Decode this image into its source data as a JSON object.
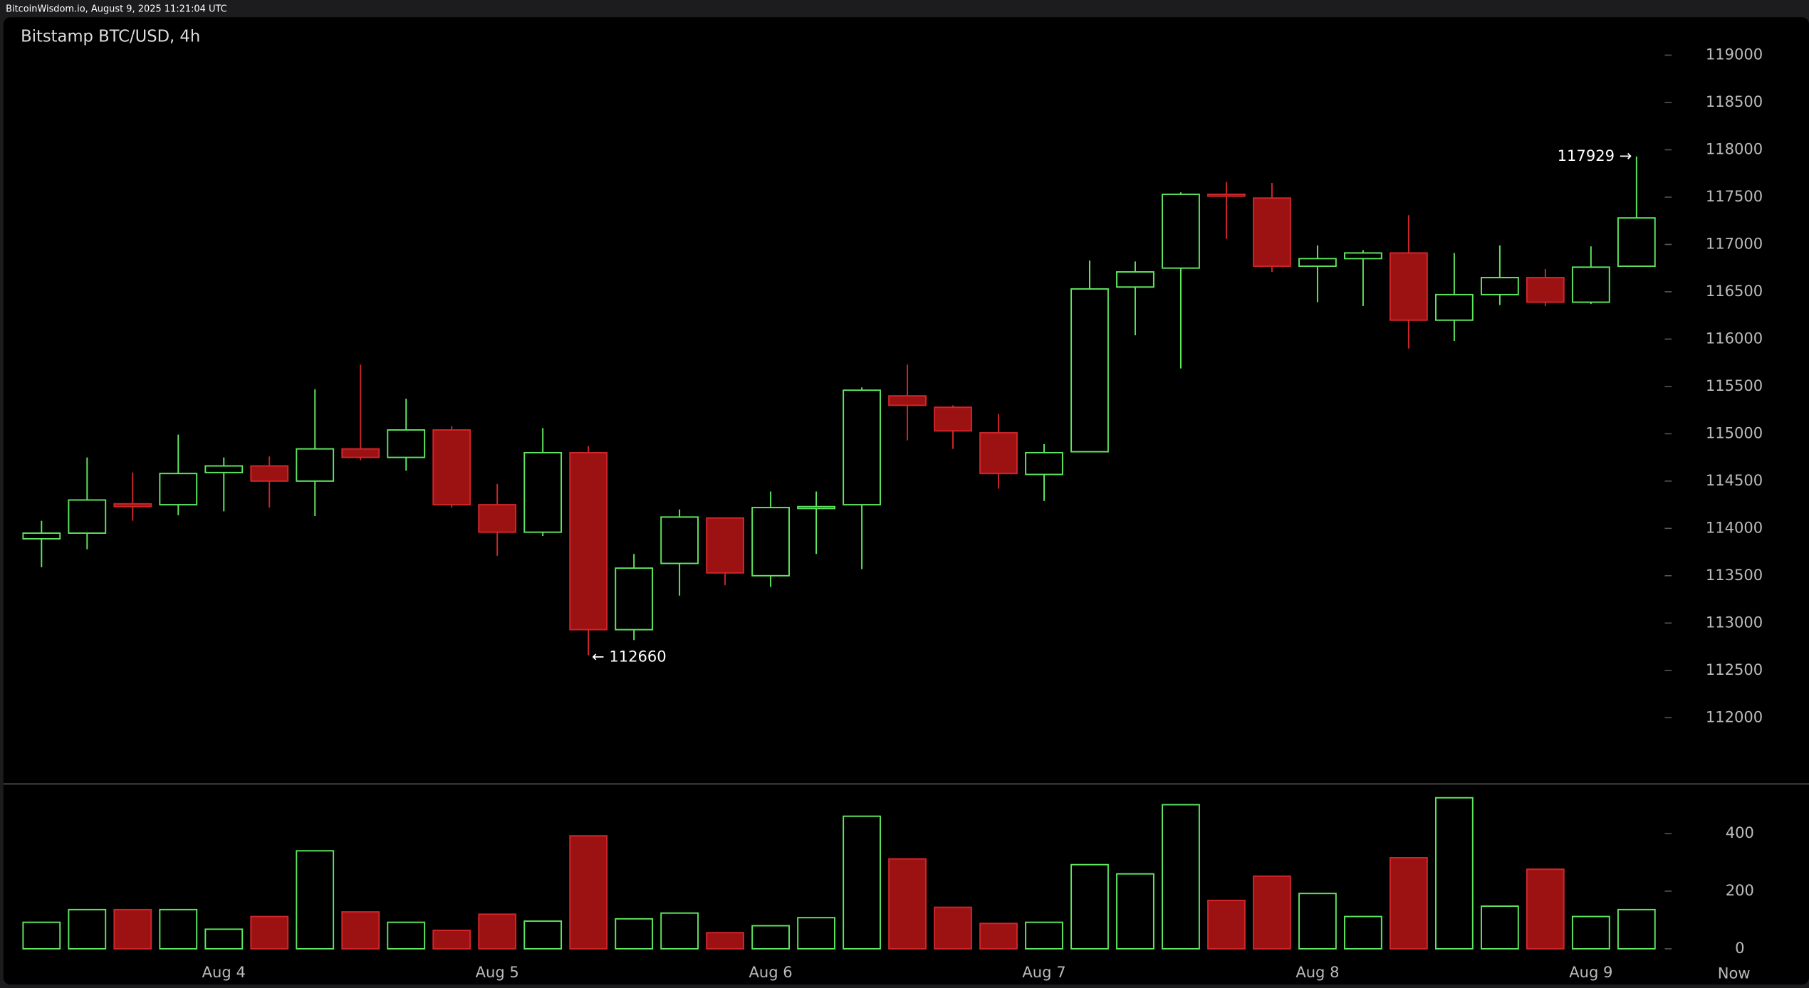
{
  "chart_data": {
    "type": "candlestick",
    "source": "BitcoinWisdom.io, August 9, 2025 11:21:04 UTC",
    "title": "Bitstamp BTC/USD, 4h",
    "categories": [
      null,
      null,
      null,
      null,
      "Aug 4",
      null,
      null,
      null,
      null,
      null,
      "Aug 5",
      null,
      null,
      null,
      null,
      null,
      "Aug 6",
      null,
      null,
      null,
      null,
      null,
      "Aug 7",
      null,
      null,
      null,
      null,
      null,
      "Aug 8",
      null,
      null,
      null,
      null,
      null,
      "Aug 9",
      null
    ],
    "now_label": "Now",
    "open": [
      113890,
      113950,
      114260,
      114250,
      114590,
      114660,
      114500,
      114840,
      114750,
      115040,
      114250,
      113960,
      114800,
      112930,
      113630,
      114110,
      113500,
      114210,
      114250,
      115400,
      115280,
      115010,
      114570,
      114810,
      116550,
      116750,
      117530,
      117490,
      116770,
      116850,
      116910,
      116200,
      116470,
      116650,
      116390,
      116770
    ],
    "close": [
      113950,
      114300,
      114230,
      114580,
      114660,
      114500,
      114840,
      114750,
      115040,
      114250,
      113960,
      114800,
      112930,
      113580,
      114120,
      113530,
      114220,
      114230,
      115460,
      115300,
      115030,
      114580,
      114800,
      116530,
      116710,
      117530,
      117510,
      116770,
      116850,
      116910,
      116200,
      116470,
      116650,
      116390,
      116760,
      117280
    ],
    "high": [
      114080,
      114750,
      114590,
      114990,
      114750,
      114760,
      115470,
      115730,
      115370,
      115080,
      114470,
      115060,
      114870,
      113730,
      114200,
      114110,
      114390,
      114390,
      115490,
      115730,
      115300,
      115210,
      114890,
      116830,
      116820,
      117550,
      117660,
      117650,
      116990,
      116940,
      117310,
      116910,
      116990,
      116740,
      116980,
      117929
    ],
    "low": [
      113590,
      113780,
      114080,
      114140,
      114180,
      114220,
      114130,
      114720,
      114610,
      114220,
      113710,
      113920,
      112660,
      112820,
      113290,
      113400,
      113380,
      113730,
      113570,
      114930,
      114840,
      114420,
      114290,
      114810,
      116040,
      115690,
      117060,
      116710,
      116390,
      116350,
      115900,
      115980,
      116360,
      116350,
      116370,
      116770
    ],
    "volume": [
      92,
      136,
      136,
      136,
      68,
      112,
      340,
      128,
      92,
      64,
      120,
      96,
      392,
      104,
      124,
      56,
      80,
      108,
      460,
      312,
      144,
      88,
      92,
      292,
      260,
      500,
      168,
      252,
      192,
      112,
      316,
      524,
      148,
      276,
      112,
      136
    ],
    "up_color": "#5ee65e",
    "down_color": "#9c1212",
    "down_edge_color": "#d0262a",
    "ylim": [
      111300,
      119400
    ],
    "yticks": [
      112000,
      112500,
      113000,
      113500,
      114000,
      114500,
      115000,
      115500,
      116000,
      116500,
      117000,
      117500,
      118000,
      118500,
      119000
    ],
    "volume_ylim": [
      -40,
      572
    ],
    "volume_yticks": [
      0,
      200,
      400
    ],
    "annotations": [
      "117929 →",
      "← 112660"
    ]
  }
}
